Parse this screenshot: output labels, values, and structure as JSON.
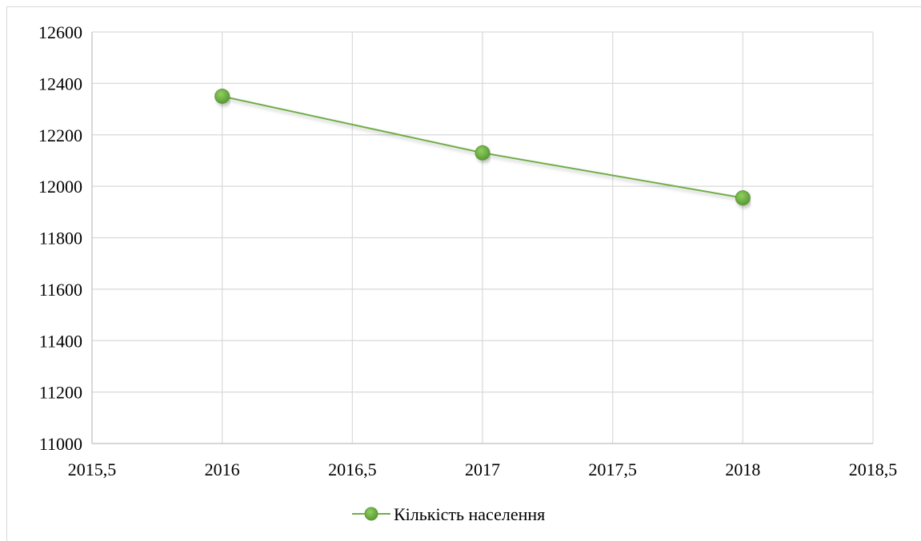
{
  "chart_data": {
    "type": "scatter",
    "title": "",
    "xlabel": "",
    "ylabel": "",
    "xlim": [
      2015.5,
      2018.5
    ],
    "ylim": [
      11000,
      12600
    ],
    "x_ticks": [
      2015.5,
      2016,
      2016.5,
      2017,
      2017.5,
      2018,
      2018.5
    ],
    "x_tick_labels": [
      "2015,5",
      "2016",
      "2016,5",
      "2017",
      "2017,5",
      "2018",
      "2018,5"
    ],
    "y_ticks": [
      11000,
      11200,
      11400,
      11600,
      11800,
      12000,
      12200,
      12400,
      12600
    ],
    "y_tick_labels": [
      "11000",
      "11200",
      "11400",
      "11600",
      "11800",
      "12000",
      "12200",
      "12400",
      "12600"
    ],
    "grid": true,
    "legend_position": "bottom",
    "series": [
      {
        "name": "Кількість населення",
        "color": "#70ad47",
        "marker_color": "#70ad47",
        "line": "straight-with-markers",
        "x": [
          2016,
          2017,
          2018
        ],
        "y": [
          12350,
          12130,
          11955
        ]
      }
    ]
  }
}
